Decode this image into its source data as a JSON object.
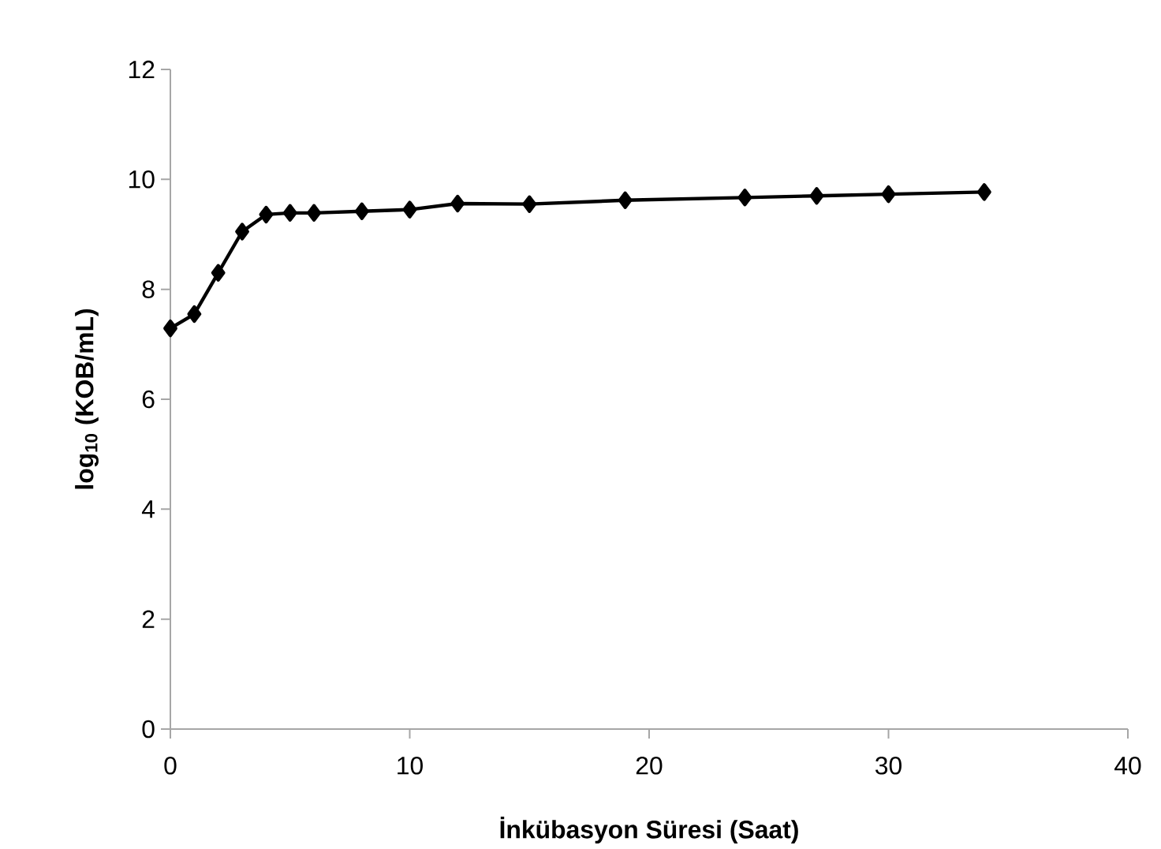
{
  "chart_data": {
    "type": "line",
    "xlabel": "İnkübasyon Süresi (Saat)",
    "ylabel": "log$_{10}$ (KOB/mL)",
    "x": [
      0,
      1,
      2,
      3,
      4,
      5,
      6,
      8,
      10,
      12,
      15,
      19,
      24,
      27,
      30,
      34
    ],
    "series": [
      {
        "color": "#000000",
        "values": [
          7.29,
          7.55,
          8.3,
          9.05,
          9.36,
          9.39,
          9.39,
          9.42,
          9.45,
          9.56,
          9.55,
          9.62,
          9.67,
          9.7,
          9.73,
          9.77
        ]
      }
    ],
    "xlim": [
      0,
      40
    ],
    "xticks": [
      0,
      10,
      20,
      30,
      40
    ],
    "ylim": [
      0,
      12
    ],
    "yticks": [
      0,
      2,
      4,
      6,
      8,
      10,
      12
    ],
    "grid": false,
    "marker": "diamond",
    "line_style": "solid"
  }
}
